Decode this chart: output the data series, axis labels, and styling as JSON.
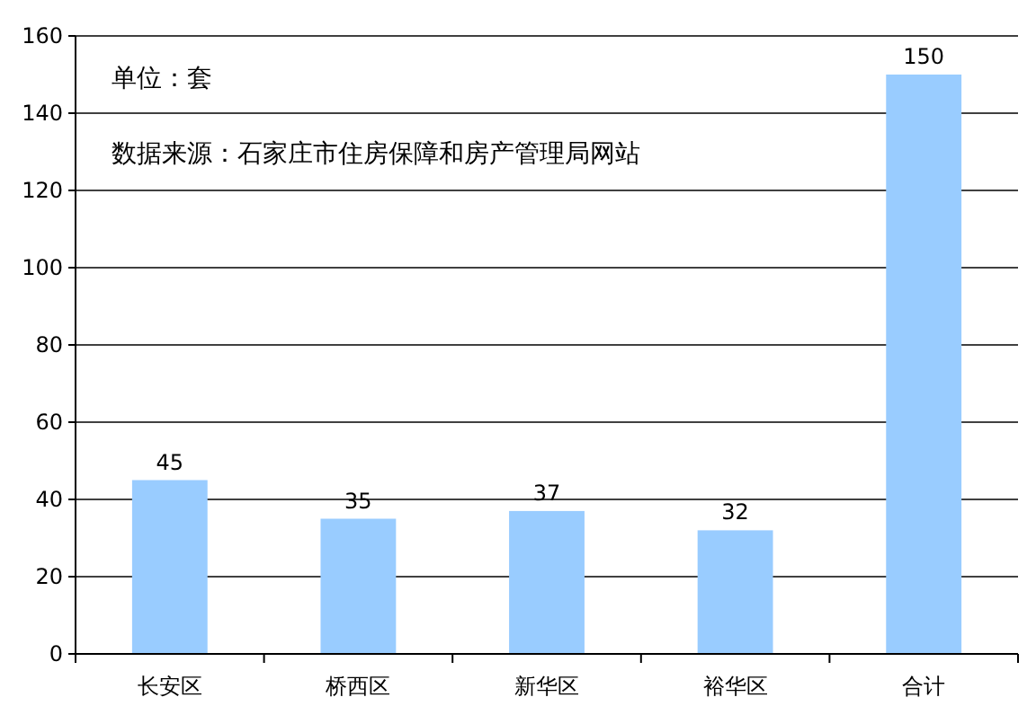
{
  "chart_data": {
    "type": "bar",
    "categories": [
      "长安区",
      "桥西区",
      "新华区",
      "裕华区",
      "合计"
    ],
    "values": [
      45,
      35,
      37,
      32,
      150
    ],
    "color": "#99ccff",
    "ylim": [
      0,
      160
    ],
    "yticks": [
      0,
      20,
      40,
      60,
      80,
      100,
      120,
      140,
      160
    ],
    "grid": "y",
    "data_labels": true,
    "annotations": [
      "单位：套",
      "数据来源：石家庄市住房保障和房产管理局网站"
    ]
  }
}
